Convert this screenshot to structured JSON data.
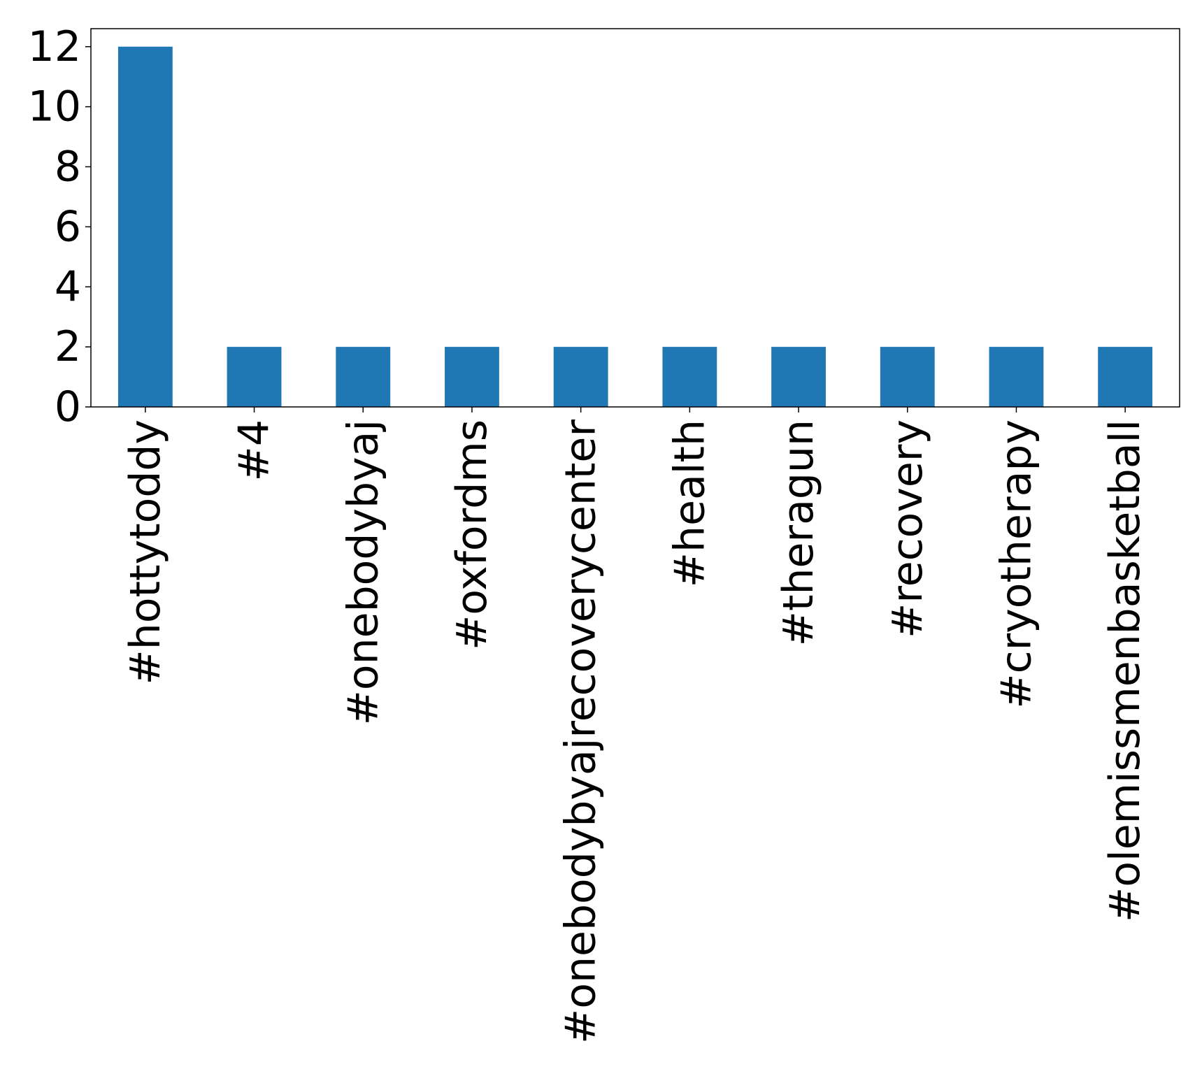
{
  "chart_data": {
    "type": "bar",
    "categories": [
      "#hottytoddy",
      "#4",
      "#onebodybyaj",
      "#oxfordms",
      "#onebodybyajrecoverycenter",
      "#health",
      "#theragun",
      "#recovery",
      "#cryotherapy",
      "#olemissmenbasketball"
    ],
    "values": [
      12,
      2,
      2,
      2,
      2,
      2,
      2,
      2,
      2,
      2
    ],
    "color": "#1f77b4",
    "ylim": [
      0,
      12.6
    ],
    "yticks": [
      0,
      2,
      4,
      6,
      8,
      10,
      12
    ],
    "grid": false
  }
}
